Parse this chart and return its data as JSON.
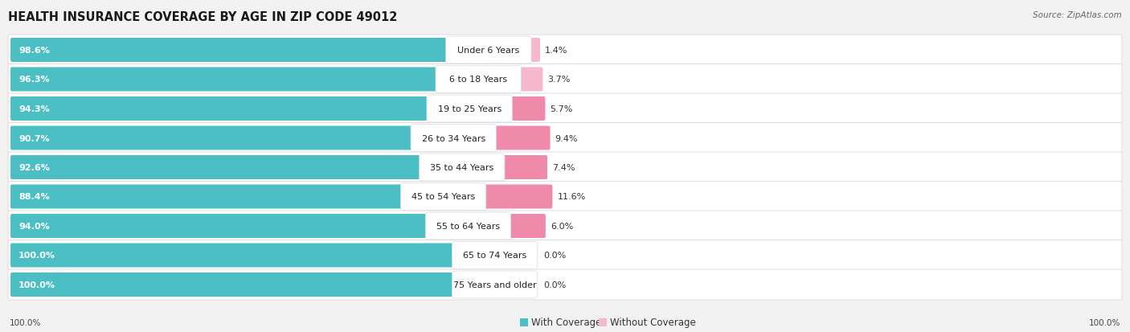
{
  "title": "HEALTH INSURANCE COVERAGE BY AGE IN ZIP CODE 49012",
  "source": "Source: ZipAtlas.com",
  "categories": [
    "Under 6 Years",
    "6 to 18 Years",
    "19 to 25 Years",
    "26 to 34 Years",
    "35 to 44 Years",
    "45 to 54 Years",
    "55 to 64 Years",
    "65 to 74 Years",
    "75 Years and older"
  ],
  "with_coverage": [
    98.6,
    96.3,
    94.3,
    90.7,
    92.6,
    88.4,
    94.0,
    100.0,
    100.0
  ],
  "without_coverage": [
    1.4,
    3.7,
    5.7,
    9.4,
    7.4,
    11.6,
    6.0,
    0.0,
    0.0
  ],
  "color_with": "#4bbfc4",
  "color_without": "#f08aaa",
  "color_without_light": "#f5b8cc",
  "bg_color": "#f2f2f2",
  "row_bg_color": "#ffffff",
  "row_border_color": "#d8d8d8",
  "title_fontsize": 10.5,
  "bar_label_fontsize": 8.0,
  "cat_label_fontsize": 8.0,
  "legend_fontsize": 8.5,
  "source_fontsize": 7.5,
  "axis_label_fontsize": 7.5
}
